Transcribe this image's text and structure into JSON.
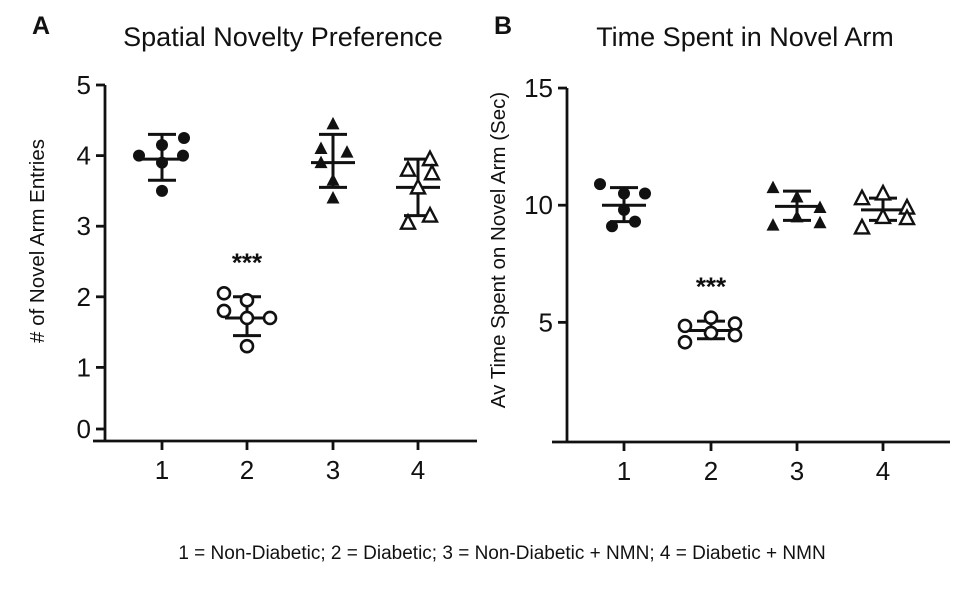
{
  "figure": {
    "panels": [
      {
        "label": "A",
        "title": "Spatial Novelty Preference",
        "ylabel": "# of Novel Arm Entries"
      },
      {
        "label": "B",
        "title": "Time Spent in Novel Arm",
        "ylabel": "Av Time Spent on Novel Arm (Sec)"
      }
    ],
    "caption": "1 = Non-Diabetic; 2 = Diabetic; 3 = Non-Diabetic + NMN; 4 = Diabetic + NMN",
    "colors": {
      "ink": "#111111",
      "background": "#ffffff"
    }
  },
  "chart_data": [
    {
      "type": "scatter",
      "panel": "A",
      "title": "Spatial Novelty Preference",
      "xlabel": "",
      "ylabel": "# of Novel Arm Entries",
      "ylim": [
        0,
        5
      ],
      "yticks": [
        0,
        1,
        2,
        3,
        4,
        5
      ],
      "xticks": [
        "1",
        "2",
        "3",
        "4"
      ],
      "grid": false,
      "legend_position": "none",
      "error_bar_style": "mean_with_sd_caps",
      "groups": [
        {
          "x": 1,
          "name": "Non-Diabetic",
          "marker": "circle-filled",
          "points": [
            [
              4.25,
              22
            ],
            [
              4.15,
              0
            ],
            [
              4.0,
              21
            ],
            [
              4.0,
              -23
            ],
            [
              3.9,
              0
            ],
            [
              3.5,
              0
            ]
          ],
          "mean": 3.95,
          "err_low": 3.65,
          "err_high": 4.3,
          "sig": ""
        },
        {
          "x": 2,
          "name": "Diabetic",
          "marker": "circle-open",
          "points": [
            [
              2.05,
              -23
            ],
            [
              1.95,
              0
            ],
            [
              1.8,
              -23
            ],
            [
              1.7,
              0
            ],
            [
              1.7,
              23
            ],
            [
              1.3,
              0
            ]
          ],
          "mean": 1.7,
          "err_low": 1.45,
          "err_high": 2.0,
          "sig": "***"
        },
        {
          "x": 3,
          "name": "Non-Diabetic + NMN",
          "marker": "triangle-filled",
          "points": [
            [
              4.45,
              0
            ],
            [
              4.1,
              -12
            ],
            [
              4.05,
              14
            ],
            [
              3.9,
              -12
            ],
            [
              3.65,
              0
            ],
            [
              3.4,
              0
            ]
          ],
          "mean": 3.9,
          "err_low": 3.55,
          "err_high": 4.3,
          "sig": ""
        },
        {
          "x": 4,
          "name": "Diabetic + NMN",
          "marker": "triangle-open",
          "points": [
            [
              3.95,
              12
            ],
            [
              3.8,
              -10
            ],
            [
              3.75,
              14
            ],
            [
              3.55,
              0
            ],
            [
              3.15,
              12
            ],
            [
              3.05,
              -10
            ]
          ],
          "mean": 3.55,
          "err_low": 3.15,
          "err_high": 3.95,
          "sig": ""
        }
      ]
    },
    {
      "type": "scatter",
      "panel": "B",
      "title": "Time Spent in Novel Arm",
      "xlabel": "",
      "ylabel": "Av Time Spent on Novel Arm (Sec)",
      "ylim": [
        0,
        15
      ],
      "yticks": [
        5,
        10,
        15
      ],
      "xticks": [
        "1",
        "2",
        "3",
        "4"
      ],
      "grid": false,
      "legend_position": "none",
      "error_bar_style": "mean_with_sd_caps",
      "groups": [
        {
          "x": 1,
          "name": "Non-Diabetic",
          "marker": "circle-filled",
          "points": [
            [
              10.9,
              -24
            ],
            [
              10.5,
              0
            ],
            [
              10.5,
              21
            ],
            [
              9.8,
              0
            ],
            [
              9.3,
              11
            ],
            [
              9.1,
              -12
            ]
          ],
          "mean": 10.0,
          "err_low": 9.3,
          "err_high": 10.75,
          "sig": ""
        },
        {
          "x": 2,
          "name": "Diabetic",
          "marker": "circle-open",
          "points": [
            [
              5.2,
              0
            ],
            [
              4.95,
              24
            ],
            [
              4.85,
              -26
            ],
            [
              4.55,
              0
            ],
            [
              4.45,
              24
            ],
            [
              4.15,
              -26
            ]
          ],
          "mean": 4.65,
          "err_low": 4.3,
          "err_high": 5.05,
          "sig": "***"
        },
        {
          "x": 3,
          "name": "Non-Diabetic + NMN",
          "marker": "triangle-filled",
          "points": [
            [
              10.75,
              -24
            ],
            [
              10.35,
              0
            ],
            [
              9.9,
              23
            ],
            [
              9.5,
              0
            ],
            [
              9.25,
              23
            ],
            [
              9.15,
              -24
            ]
          ],
          "mean": 9.95,
          "err_low": 9.35,
          "err_high": 10.6,
          "sig": ""
        },
        {
          "x": 4,
          "name": "Diabetic + NMN",
          "marker": "triangle-open",
          "points": [
            [
              10.5,
              0
            ],
            [
              10.3,
              -21
            ],
            [
              9.9,
              24
            ],
            [
              9.5,
              0
            ],
            [
              9.45,
              24
            ],
            [
              9.05,
              -21
            ]
          ],
          "mean": 9.8,
          "err_low": 9.35,
          "err_high": 10.3,
          "sig": ""
        }
      ]
    }
  ]
}
